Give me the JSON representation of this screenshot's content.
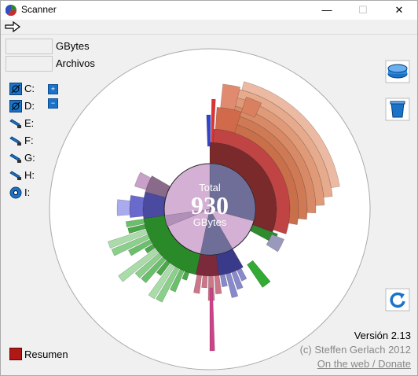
{
  "window": {
    "title": "Scanner",
    "minimize": "—",
    "maximize": "☐",
    "close": "✕"
  },
  "toolbar": {
    "nav_icon": "arrow-right-icon"
  },
  "stats": {
    "gbytes_value": "",
    "gbytes_label": "GBytes",
    "files_value": "",
    "files_label": "Archivos"
  },
  "drives": [
    {
      "label": "C:",
      "icon": "hard-drive-icon"
    },
    {
      "label": "D:",
      "icon": "hard-drive-icon"
    },
    {
      "label": "E:",
      "icon": "removable-drive-icon"
    },
    {
      "label": "F:",
      "icon": "removable-drive-icon"
    },
    {
      "label": "G:",
      "icon": "removable-drive-icon"
    },
    {
      "label": "H:",
      "icon": "removable-drive-icon"
    },
    {
      "label": "I:",
      "icon": "optical-drive-icon"
    }
  ],
  "expand_buttons": {
    "expand": "+",
    "collapse": "−"
  },
  "center": {
    "title": "Total",
    "value": "930",
    "unit": "GBytes"
  },
  "footer": {
    "version": "Versión 2.13",
    "credit": "(c) Steffen Gerlach 2012",
    "web": "On the web / Donate",
    "summary": "Resumen"
  },
  "colors": {
    "selected_drive": "#1a73c9",
    "center_disk": "#d4b0d4",
    "center_used": "#6e6e98"
  }
}
